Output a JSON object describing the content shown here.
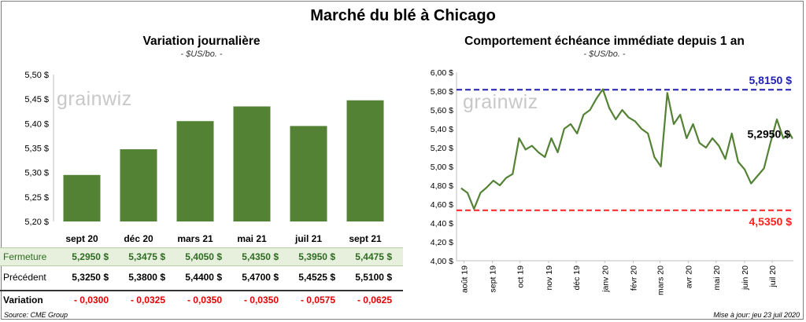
{
  "title": "Marché du blé à Chicago",
  "watermark": "grainwiz",
  "source": "Source: CME Group",
  "updated": "Mise à jour: jeu 23 juil 2020",
  "left_chart_title": "Variation journalière",
  "left_chart_subtitle": "- $US/bo. -",
  "right_chart_title": "Comportement échéance immédiate depuis 1 an",
  "right_chart_subtitle": "- $US/bo. -",
  "colors": {
    "bar": "#548235",
    "line": "#548235",
    "max_line": "#1f1fb4",
    "min_line": "#ff2020",
    "grid": "#d9d9d9",
    "negative": "#e00000"
  },
  "table": {
    "row_labels": {
      "close": "Fermeture",
      "prev": "Précédent",
      "var": "Variation"
    },
    "close": [
      "5,2950  $",
      "5,3475  $",
      "5,4050  $",
      "5,4350  $",
      "5,3950  $",
      "5,4475  $"
    ],
    "prev": [
      "5,3250  $",
      "5,3800  $",
      "5,4400  $",
      "5,4700  $",
      "5,4525  $",
      "5,5100  $"
    ],
    "var": [
      "- 0,0300",
      "- 0,0325",
      "- 0,0350",
      "- 0,0350",
      "- 0,0575",
      "- 0,0625"
    ]
  },
  "chart_data": [
    {
      "type": "bar",
      "title": "Variation journalière",
      "subtitle": "- $US/bo. -",
      "categories": [
        "sept 20",
        "déc 20",
        "mars 21",
        "mai 21",
        "juil 21",
        "sept 21"
      ],
      "values": [
        5.295,
        5.3475,
        5.405,
        5.435,
        5.395,
        5.4475
      ],
      "ylim": [
        5.2,
        5.5
      ],
      "yticks": [
        "5,20 $",
        "5,25 $",
        "5,30 $",
        "5,35 $",
        "5,40 $",
        "5,45 $",
        "5,50 $"
      ],
      "grid": false
    },
    {
      "type": "line",
      "title": "Comportement échéance immédiate depuis 1 an",
      "subtitle": "- $US/bo. -",
      "ylim": [
        4.0,
        6.0
      ],
      "yticks": [
        "4,00 $",
        "4,20 $",
        "4,40 $",
        "4,60 $",
        "4,80 $",
        "5,00 $",
        "5,20 $",
        "5,40 $",
        "5,60 $",
        "5,80 $",
        "6,00 $"
      ],
      "xticks": [
        "août 19",
        "sept 19",
        "oct 19",
        "nov 19",
        "déc 19",
        "janv 20",
        "févr 20",
        "mars 20",
        "avr 20",
        "mai 20",
        "juin 20",
        "juil 20"
      ],
      "x": [
        "2019-07-29",
        "2019-08-05",
        "2019-08-12",
        "2019-08-19",
        "2019-08-26",
        "2019-09-02",
        "2019-09-09",
        "2019-09-16",
        "2019-09-23",
        "2019-09-30",
        "2019-10-07",
        "2019-10-14",
        "2019-10-21",
        "2019-10-28",
        "2019-11-04",
        "2019-11-11",
        "2019-11-18",
        "2019-11-25",
        "2019-12-02",
        "2019-12-09",
        "2019-12-16",
        "2019-12-23",
        "2019-12-30",
        "2020-01-06",
        "2020-01-13",
        "2020-01-20",
        "2020-01-27",
        "2020-02-03",
        "2020-02-10",
        "2020-02-17",
        "2020-02-24",
        "2020-03-02",
        "2020-03-09",
        "2020-03-16",
        "2020-03-23",
        "2020-03-30",
        "2020-04-06",
        "2020-04-13",
        "2020-04-20",
        "2020-04-27",
        "2020-05-04",
        "2020-05-11",
        "2020-05-18",
        "2020-05-25",
        "2020-06-01",
        "2020-06-08",
        "2020-06-15",
        "2020-06-22",
        "2020-06-29",
        "2020-07-06",
        "2020-07-13",
        "2020-07-20",
        "2020-07-23"
      ],
      "values": [
        4.77,
        4.72,
        4.55,
        4.72,
        4.78,
        4.85,
        4.8,
        4.88,
        4.92,
        5.3,
        5.18,
        5.22,
        5.15,
        5.1,
        5.3,
        5.15,
        5.4,
        5.45,
        5.35,
        5.55,
        5.6,
        5.72,
        5.82,
        5.62,
        5.5,
        5.6,
        5.52,
        5.48,
        5.4,
        5.35,
        5.1,
        5.0,
        5.78,
        5.45,
        5.55,
        5.3,
        5.45,
        5.25,
        5.2,
        5.3,
        5.22,
        5.08,
        5.35,
        5.05,
        4.97,
        4.82,
        4.9,
        4.98,
        5.25,
        5.5,
        5.3,
        5.35,
        5.295
      ],
      "reference_lines": [
        {
          "name": "max",
          "value": 5.815,
          "label": "5,8150  $"
        },
        {
          "name": "min",
          "value": 4.535,
          "label": "4,5350  $"
        }
      ],
      "last_label": "5,2950 $",
      "grid": false
    }
  ]
}
